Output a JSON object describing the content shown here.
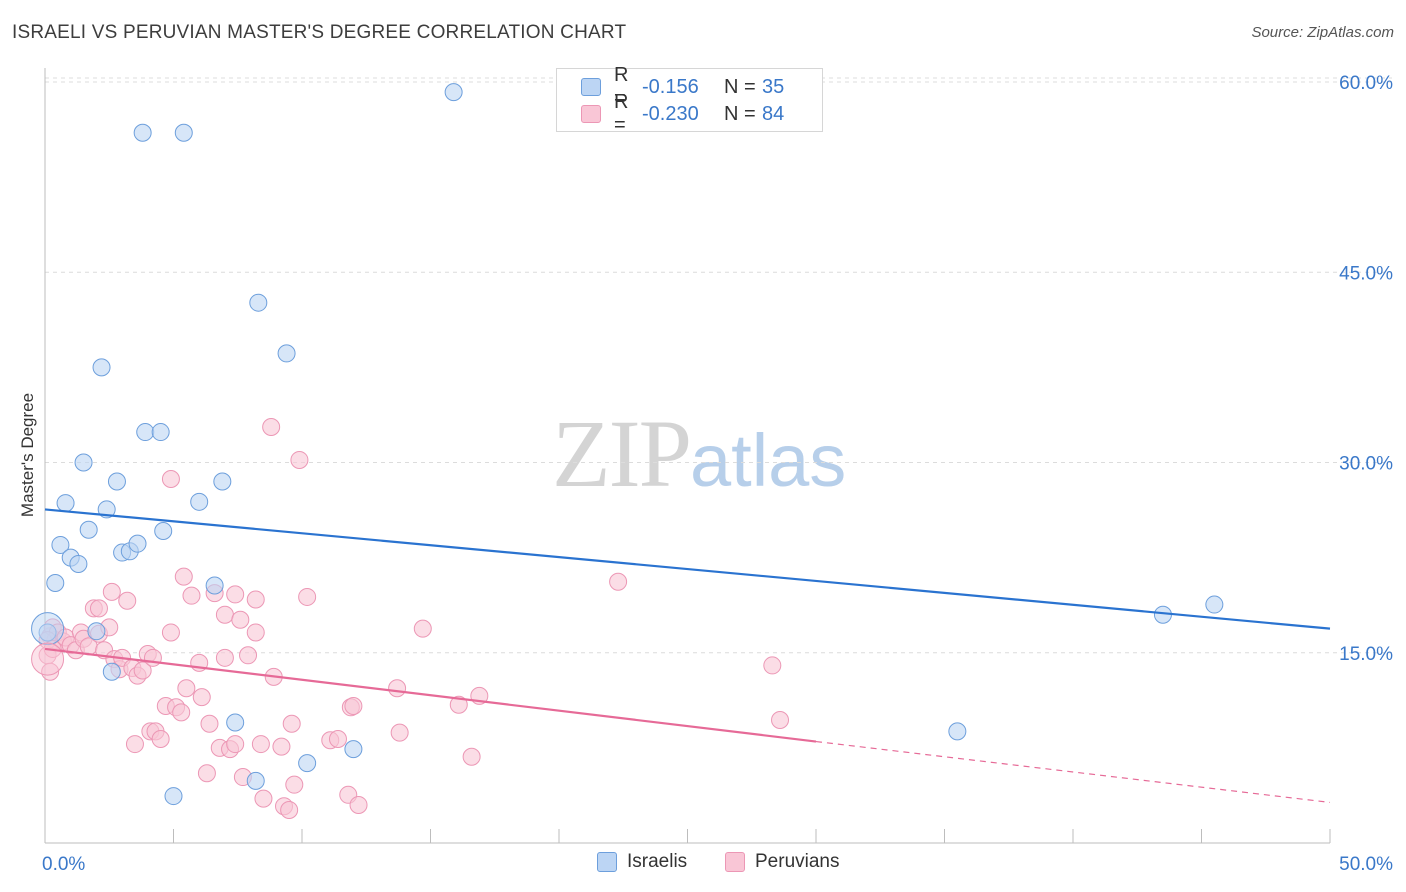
{
  "title": "ISRAELI VS PERUVIAN MASTER'S DEGREE CORRELATION CHART",
  "source": "Source: ZipAtlas.com",
  "watermark": {
    "zip": "ZIP",
    "atlas": "atlas"
  },
  "colors": {
    "blue": "#2a73d0",
    "blue_fill": "#bcd5f4",
    "blue_stroke": "#6d9fdc",
    "pink": "#e66a97",
    "pink_fill": "#f9c6d6",
    "pink_stroke": "#ec97b5",
    "tick": "#3a78c9",
    "grid": "#dcdcdc"
  },
  "legend_top": [
    {
      "r_label": "R =",
      "r_value": "-0.156",
      "n_label": "N =",
      "n_value": "35"
    },
    {
      "r_label": "R =",
      "r_value": "-0.230",
      "n_label": "N =",
      "n_value": "84"
    }
  ],
  "legend_bottom": [
    "Israelis",
    "Peruvians"
  ],
  "chart_data": {
    "type": "scatter",
    "title": "ISRAELI VS PERUVIAN MASTER'S DEGREE CORRELATION CHART",
    "ylabel": "Master's Degree",
    "xlabel": "",
    "xlim": [
      0,
      50
    ],
    "ylim": [
      0,
      60
    ],
    "x_tick_labels": [
      "0.0%",
      "50.0%"
    ],
    "y_tick_labels": [
      "15.0%",
      "30.0%",
      "45.0%",
      "60.0%"
    ],
    "y_ticks": [
      15,
      30,
      45,
      60
    ],
    "grid": "horizontal dashed",
    "legend_position": "top-center",
    "series": [
      {
        "name": "Israelis",
        "color": "#2a73d0",
        "points": [
          [
            0.1,
            16.6
          ],
          [
            0.4,
            20.5
          ],
          [
            0.6,
            23.5
          ],
          [
            0.8,
            26.8
          ],
          [
            1.0,
            22.5
          ],
          [
            1.3,
            22.0
          ],
          [
            1.5,
            30.0
          ],
          [
            1.7,
            24.7
          ],
          [
            2.0,
            16.7
          ],
          [
            2.2,
            37.5
          ],
          [
            2.4,
            26.3
          ],
          [
            2.6,
            13.5
          ],
          [
            2.8,
            28.5
          ],
          [
            3.0,
            22.9
          ],
          [
            3.3,
            23.0
          ],
          [
            3.6,
            23.6
          ],
          [
            3.8,
            56.0
          ],
          [
            3.9,
            32.4
          ],
          [
            4.5,
            32.4
          ],
          [
            4.6,
            24.6
          ],
          [
            5.0,
            3.7
          ],
          [
            5.4,
            56.0
          ],
          [
            6.0,
            26.9
          ],
          [
            6.6,
            20.3
          ],
          [
            6.9,
            28.5
          ],
          [
            7.4,
            9.5
          ],
          [
            8.2,
            4.9
          ],
          [
            8.3,
            42.6
          ],
          [
            9.4,
            38.6
          ],
          [
            10.2,
            6.3
          ],
          [
            12.0,
            7.4
          ],
          [
            15.9,
            59.2
          ],
          [
            35.5,
            8.8
          ],
          [
            43.5,
            18.0
          ],
          [
            45.5,
            18.8
          ]
        ],
        "trend": {
          "x": [
            0,
            50
          ],
          "y": [
            26.3,
            16.9
          ]
        }
      },
      {
        "name": "Peruvians",
        "color": "#e66a97",
        "points": [
          [
            0.1,
            14.8
          ],
          [
            0.2,
            16.3
          ],
          [
            0.3,
            17.0
          ],
          [
            0.4,
            16.0
          ],
          [
            0.5,
            16.6
          ],
          [
            0.7,
            15.9
          ],
          [
            0.8,
            16.2
          ],
          [
            1.0,
            15.6
          ],
          [
            1.2,
            15.2
          ],
          [
            1.4,
            16.6
          ],
          [
            1.5,
            16.1
          ],
          [
            1.7,
            15.5
          ],
          [
            1.9,
            18.5
          ],
          [
            2.1,
            18.5
          ],
          [
            2.1,
            16.5
          ],
          [
            2.3,
            15.2
          ],
          [
            2.5,
            17.0
          ],
          [
            2.6,
            19.8
          ],
          [
            2.7,
            14.5
          ],
          [
            2.9,
            13.7
          ],
          [
            3.0,
            14.6
          ],
          [
            3.2,
            19.1
          ],
          [
            3.4,
            13.8
          ],
          [
            3.5,
            7.8
          ],
          [
            3.6,
            13.2
          ],
          [
            3.8,
            13.6
          ],
          [
            4.0,
            14.9
          ],
          [
            4.1,
            8.8
          ],
          [
            4.2,
            14.6
          ],
          [
            4.3,
            8.8
          ],
          [
            4.5,
            8.2
          ],
          [
            4.7,
            10.8
          ],
          [
            4.9,
            28.7
          ],
          [
            4.9,
            16.6
          ],
          [
            5.1,
            10.7
          ],
          [
            5.3,
            10.3
          ],
          [
            5.4,
            21.0
          ],
          [
            5.5,
            12.2
          ],
          [
            5.7,
            19.5
          ],
          [
            6.0,
            14.2
          ],
          [
            6.1,
            11.5
          ],
          [
            6.3,
            5.5
          ],
          [
            6.4,
            9.4
          ],
          [
            6.6,
            19.7
          ],
          [
            6.8,
            7.5
          ],
          [
            7.0,
            14.6
          ],
          [
            7.0,
            18.0
          ],
          [
            7.2,
            7.4
          ],
          [
            7.4,
            19.6
          ],
          [
            7.4,
            7.8
          ],
          [
            7.6,
            17.6
          ],
          [
            7.7,
            5.2
          ],
          [
            7.9,
            14.8
          ],
          [
            8.2,
            19.2
          ],
          [
            8.2,
            16.6
          ],
          [
            8.4,
            7.8
          ],
          [
            8.5,
            3.5
          ],
          [
            8.8,
            32.8
          ],
          [
            8.9,
            13.1
          ],
          [
            9.2,
            7.6
          ],
          [
            9.3,
            2.9
          ],
          [
            9.5,
            2.6
          ],
          [
            9.6,
            9.4
          ],
          [
            9.7,
            4.6
          ],
          [
            9.9,
            30.2
          ],
          [
            10.2,
            19.4
          ],
          [
            11.1,
            8.1
          ],
          [
            11.4,
            8.2
          ],
          [
            11.8,
            3.8
          ],
          [
            11.9,
            10.7
          ],
          [
            12.0,
            10.8
          ],
          [
            12.2,
            3.0
          ],
          [
            13.7,
            12.2
          ],
          [
            13.8,
            8.7
          ],
          [
            14.7,
            16.9
          ],
          [
            16.1,
            10.9
          ],
          [
            16.6,
            6.8
          ],
          [
            16.9,
            11.6
          ],
          [
            22.3,
            20.6
          ],
          [
            28.3,
            14.0
          ],
          [
            28.6,
            9.7
          ],
          [
            0.2,
            13.5
          ],
          [
            0.1,
            16.0
          ],
          [
            0.3,
            15.3
          ]
        ],
        "trend": {
          "x": [
            0,
            30
          ],
          "y": [
            15.3,
            8.0
          ]
        },
        "trend_dashed": {
          "x": [
            30,
            50
          ],
          "y": [
            8.0,
            3.2
          ]
        }
      }
    ]
  }
}
